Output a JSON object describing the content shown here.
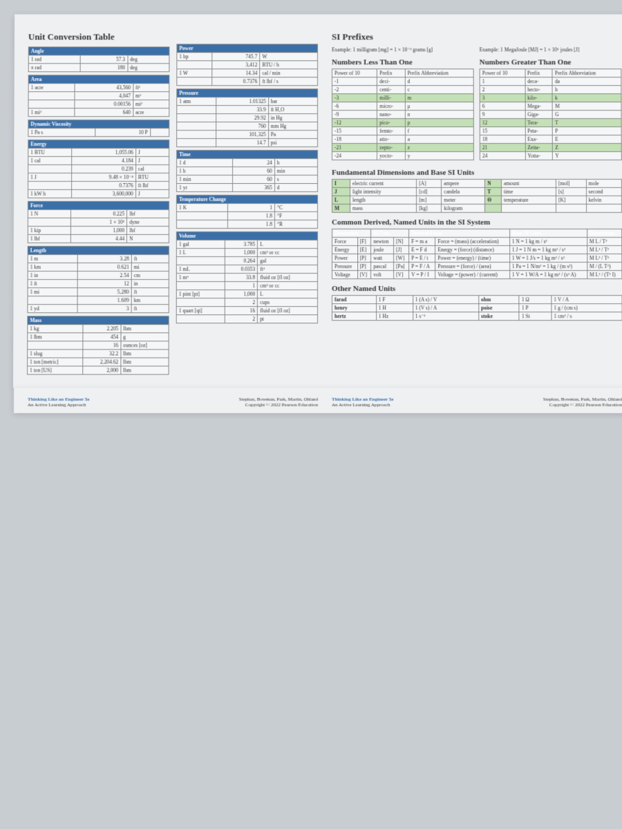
{
  "left": {
    "title": "Unit Conversion Table",
    "sections": [
      {
        "name": "Angle",
        "rows": [
          [
            "1 rad",
            "57.3",
            "deg"
          ],
          [
            "π rad",
            "180",
            "deg"
          ]
        ]
      },
      {
        "name": "Area",
        "rows": [
          [
            "1 acre",
            "43,560",
            "ft²"
          ],
          [
            "",
            "4,047",
            "m²"
          ],
          [
            "",
            "0.00156",
            "mi²"
          ],
          [
            "1 mi²",
            "640",
            "acre"
          ]
        ]
      },
      {
        "name": "Dynamic Viscosity",
        "rows": [
          [
            "1 Pa s",
            "10 P",
            ""
          ]
        ]
      },
      {
        "name": "Energy",
        "rows": [
          [
            "1 BTU",
            "1,055.06",
            "J"
          ],
          [
            "1 cal",
            "4.184",
            "J"
          ],
          [
            "",
            "0.239",
            "cal"
          ],
          [
            "1 J",
            "9.48 × 10⁻⁴",
            "BTU"
          ],
          [
            "",
            "0.7376",
            "ft lbf"
          ],
          [
            "1 kW h",
            "3,600,000",
            "J"
          ]
        ]
      },
      {
        "name": "Force",
        "rows": [
          [
            "1 N",
            "0.225",
            "lbf"
          ],
          [
            "",
            "1 × 10⁵",
            "dyne"
          ],
          [
            "1 kip",
            "1,000",
            "lbf"
          ],
          [
            "1 lbf",
            "4.44",
            "N"
          ]
        ]
      },
      {
        "name": "Length",
        "rows": [
          [
            "1 m",
            "3.28",
            "ft"
          ],
          [
            "1 km",
            "0.621",
            "mi"
          ],
          [
            "1 in",
            "2.54",
            "cm"
          ],
          [
            "1 ft",
            "12",
            "in"
          ],
          [
            "1 mi",
            "5,280",
            "ft"
          ],
          [
            "",
            "1.609",
            "km"
          ],
          [
            "1 yd",
            "3",
            "ft"
          ]
        ]
      },
      {
        "name": "Mass",
        "rows": [
          [
            "1 kg",
            "2.205",
            "lbm"
          ],
          [
            "1 lbm",
            "454",
            "g"
          ],
          [
            "",
            "16",
            "ounces [oz]"
          ],
          [
            "1 slug",
            "32.2",
            "lbm"
          ],
          [
            "1 ton [metric]",
            "2,204.62",
            "lbm"
          ],
          [
            "1 ton [US]",
            "2,000",
            "lbm"
          ]
        ]
      }
    ],
    "midSections": [
      {
        "name": "Power",
        "rows": [
          [
            "1 hp",
            "745.7",
            "W"
          ],
          [
            "",
            "3,412",
            "BTU / h"
          ],
          [
            "1 W",
            "14.34",
            "cal / min"
          ],
          [
            "",
            "0.7376",
            "ft lbf / s"
          ]
        ]
      },
      {
        "name": "Pressure",
        "rows": [
          [
            "1 atm",
            "1.01325",
            "bar"
          ],
          [
            "",
            "33.9",
            "ft H₂O"
          ],
          [
            "",
            "29.92",
            "in Hg"
          ],
          [
            "",
            "760",
            "mm Hg"
          ],
          [
            "",
            "101,325",
            "Pa"
          ],
          [
            "",
            "14.7",
            "psi"
          ]
        ]
      },
      {
        "name": "Time",
        "rows": [
          [
            "1 d",
            "24",
            "h"
          ],
          [
            "1 h",
            "60",
            "min"
          ],
          [
            "1 min",
            "60",
            "s"
          ],
          [
            "1 yr",
            "365",
            "d"
          ]
        ]
      },
      {
        "name": "Temperature Change",
        "rows": [
          [
            "1 K",
            "1",
            "°C"
          ],
          [
            "",
            "1.8",
            "°F"
          ],
          [
            "",
            "1.8",
            "°R"
          ]
        ]
      },
      {
        "name": "Volume",
        "rows": [
          [
            "1 gal",
            "3.785",
            "L"
          ],
          [
            "1 L",
            "1,000",
            "cm³ or cc"
          ],
          [
            "",
            "0.264",
            "gal"
          ],
          [
            "1 mL",
            "0.0353",
            "ft³"
          ],
          [
            "1 m³",
            "33.8",
            "fluid oz [fl oz]"
          ],
          [
            "",
            "1",
            "cm³ or cc"
          ],
          [
            "1 pint [pt]",
            "1,000",
            "L"
          ],
          [
            "",
            "2",
            "cups"
          ],
          [
            "1 quart [qt]",
            "16",
            "fluid oz [fl oz]"
          ],
          [
            "",
            "2",
            "pt"
          ]
        ]
      }
    ]
  },
  "right": {
    "title": "SI Prefixes",
    "exLess": "Example: 1 milligram [mg] = 1 × 10⁻³ grams [g]",
    "exMore": "Example: 1 MegaJoule [MJ] = 1 × 10⁶ joules [J]",
    "lessTitle": "Numbers Less Than One",
    "moreTitle": "Numbers Greater Than One",
    "lessHdr": [
      "Power of 10",
      "Prefix",
      "Prefix Abbreviation"
    ],
    "lessRows": [
      [
        "-1",
        "deci-",
        "d"
      ],
      [
        "-2",
        "centi-",
        "c"
      ],
      [
        "-3",
        "milli-",
        "m"
      ],
      [
        "-6",
        "micro-",
        "μ"
      ],
      [
        "-9",
        "nano-",
        "n"
      ],
      [
        "-12",
        "pico-",
        "p"
      ],
      [
        "-15",
        "femto-",
        "f"
      ],
      [
        "-18",
        "atto-",
        "a"
      ],
      [
        "-21",
        "zepto-",
        "z"
      ],
      [
        "-24",
        "yocto-",
        "y"
      ]
    ],
    "moreRows": [
      [
        "1",
        "deca-",
        "da"
      ],
      [
        "2",
        "hecto-",
        "h"
      ],
      [
        "3",
        "kilo-",
        "k"
      ],
      [
        "6",
        "Mega-",
        "M"
      ],
      [
        "9",
        "Giga-",
        "G"
      ],
      [
        "12",
        "Tera-",
        "T"
      ],
      [
        "15",
        "Peta-",
        "P"
      ],
      [
        "18",
        "Exa-",
        "E"
      ],
      [
        "21",
        "Zetta-",
        "Z"
      ],
      [
        "24",
        "Yotta-",
        "Y"
      ]
    ],
    "fundTitle": "Fundamental Dimensions and Base SI Units",
    "fundRows": [
      [
        "I",
        "electric current",
        "[A]",
        "ampere",
        "N",
        "amount",
        "[mol]",
        "mole"
      ],
      [
        "J",
        "light intensity",
        "[cd]",
        "candela",
        "T",
        "time",
        "[s]",
        "second"
      ],
      [
        "L",
        "length",
        "[m]",
        "meter",
        "Θ",
        "temperature",
        "[K]",
        "kelvin"
      ],
      [
        "M",
        "mass",
        "[kg]",
        "kilogram",
        "",
        "",
        "",
        ""
      ]
    ],
    "commonTitle": "Common Derived, Named Units in the SI System",
    "commonHdr": [
      "Dimension",
      "SI Unit",
      "Derived From",
      "Base SI Units",
      "Dimensions"
    ],
    "commonRows": [
      [
        "Force",
        "[F]",
        "newton",
        "[N]",
        "F = m a",
        "Force = (mass) (acceleration)",
        "1 N = 1 kg m / s²",
        "M L / T²"
      ],
      [
        "Energy",
        "[E]",
        "joule",
        "[J]",
        "E = F d",
        "Energy = (force) (distance)",
        "1 J = 1 N m = 1 kg m² / s²",
        "M L² / T²"
      ],
      [
        "Power",
        "[P]",
        "watt",
        "[W]",
        "P = E / t",
        "Power = (energy) / (time)",
        "1 W = 1 J/s = 1 kg m² / s³",
        "M L² / T³"
      ],
      [
        "Pressure",
        "[P]",
        "pascal",
        "[Pa]",
        "P = F / A",
        "Pressure = (force) / (area)",
        "1 Pa = 1 N/m² = 1 kg / (m s²)",
        "M / (L T²)"
      ],
      [
        "Voltage",
        "[V]",
        "volt",
        "[V]",
        "V = P / I",
        "Voltage = (power) / (current)",
        "1 V = 1 W/A = 1 kg m² / (s³ A)",
        "M L² / (T³ I)"
      ]
    ],
    "otherTitle": "Other Named Units",
    "otherRows": [
      [
        "farad",
        "1 F",
        "1 (A s) / V",
        "ohm",
        "1 Ω",
        "1 V / A"
      ],
      [
        "henry",
        "1 H",
        "1 (V s) / A",
        "poise",
        "1 P",
        "1 g / (cm s)"
      ],
      [
        "hertz",
        "1 Hz",
        "1 s⁻¹",
        "stoke",
        "1 St",
        "1 cm² / s"
      ]
    ]
  },
  "footer": {
    "book": "Thinking Like an Engineer 5e",
    "sub": "An Active Learning Approach",
    "pub": "Stephan, Bowman, Park, Martin, Ohland",
    "copy": "Copyright © 2022 Pearson Education"
  }
}
